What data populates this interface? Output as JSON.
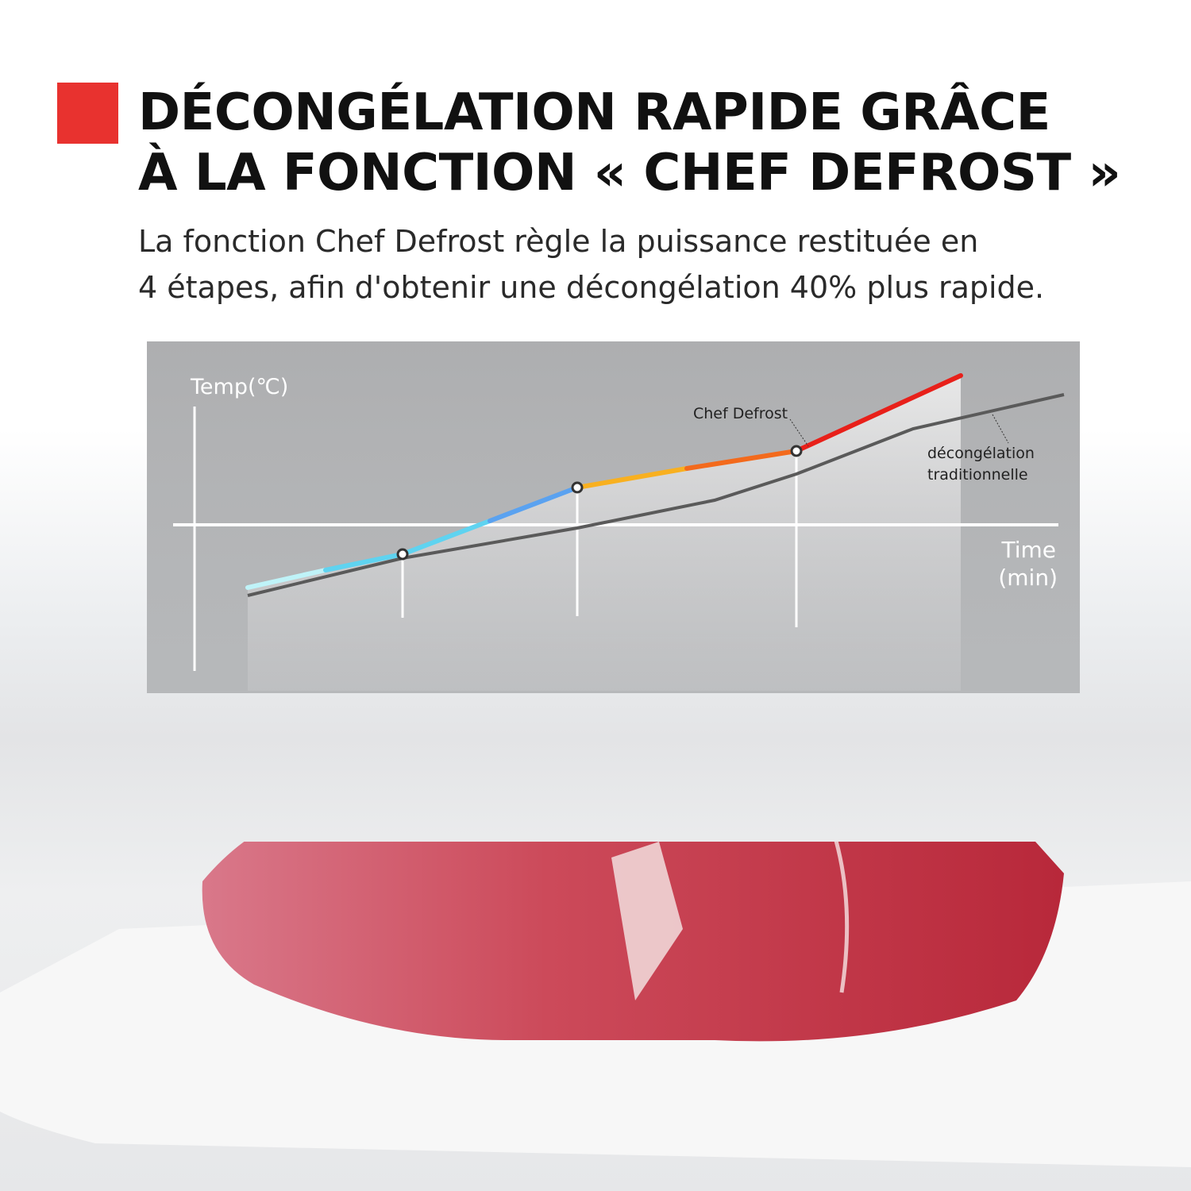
{
  "heading": {
    "title_line1": "DÉCONGÉLATION RAPIDE GRÂCE",
    "title_line2": "À LA FONCTION « CHEF DEFROST »",
    "description_line1": "La fonction Chef Defrost règle la puissance restituée en",
    "description_line2": "4 étapes, afin d'obtenir une décongélation 40% plus rapide.",
    "accent_color": "#e8322f"
  },
  "diagram": {
    "y_axis_label": "Temp(℃)",
    "x_axis_label_line1": "Time",
    "x_axis_label_line2": "(min)",
    "chef_defrost_label": "Chef Defrost",
    "traditional_label_line1": "décongélation",
    "traditional_label_line2": "traditionnelle",
    "stage_count": 4,
    "chef_colors": [
      "#bff3f8",
      "#5fd3f0",
      "#5aa2f0",
      "#f8b020",
      "#f36a1c",
      "#e8201a"
    ],
    "traditional_color": "#5a5a5a"
  },
  "photo": {
    "subject": "raw beef steak on white cutting board"
  }
}
